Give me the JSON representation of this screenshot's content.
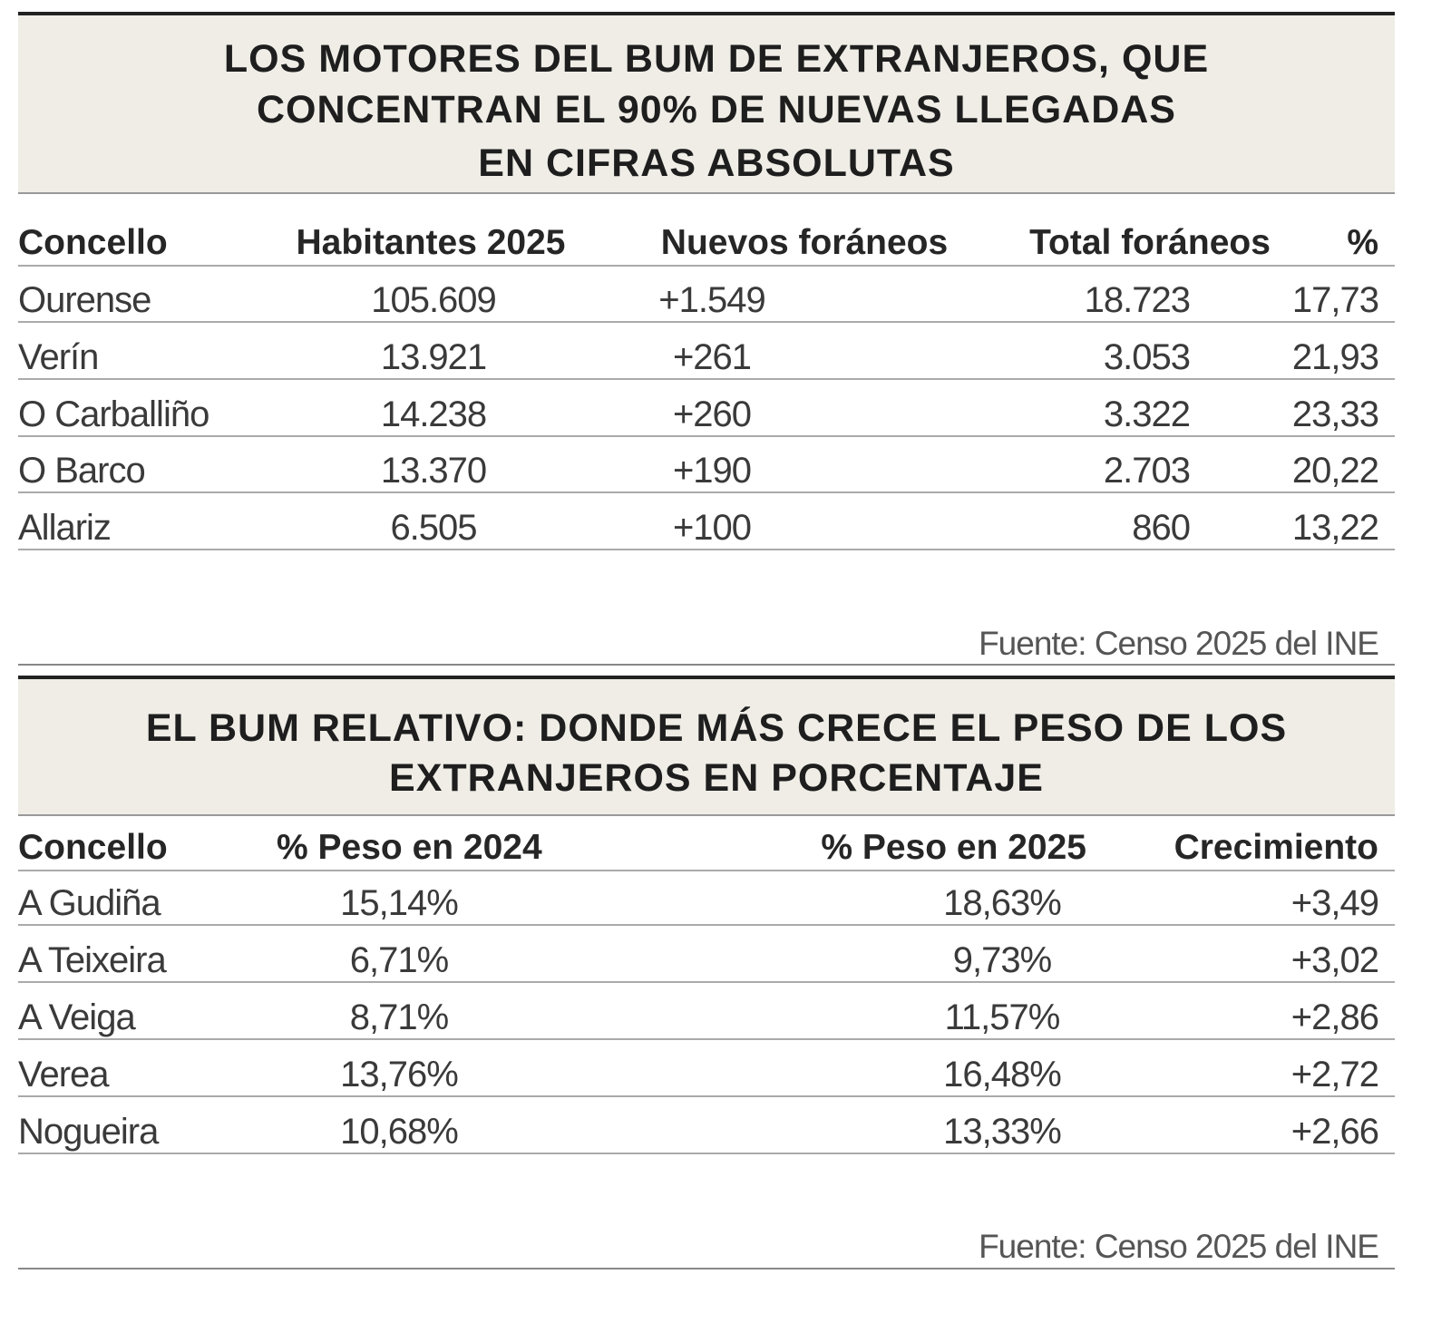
{
  "tables": [
    {
      "title_lines": [
        "LOS MOTORES DEL BUM DE EXTRANJEROS, QUE",
        "CONCENTRAN EL 90% DE NUEVAS LLEGADAS",
        "EN CIFRAS ABSOLUTAS"
      ],
      "columns": [
        "Concello",
        "Habitantes 2025",
        "Nuevos foráneos",
        "Total foráneos",
        "%"
      ],
      "rows": [
        [
          "Ourense",
          "105.609",
          "+1.549",
          "18.723",
          "17,73"
        ],
        [
          "Verín",
          "13.921",
          "+261",
          "3.053",
          "21,93"
        ],
        [
          "O Carballiño",
          "14.238",
          "+260",
          "3.322",
          "23,33"
        ],
        [
          "O Barco",
          "13.370",
          "+190",
          "2.703",
          "20,22"
        ],
        [
          "Allariz",
          "6.505",
          "+100",
          "860",
          "13,22"
        ]
      ],
      "source": "Fuente: Censo 2025 del INE"
    },
    {
      "title_lines": [
        "EL BUM RELATIVO: DONDE MÁS CRECE EL PESO DE LOS",
        "EXTRANJEROS EN PORCENTAJE"
      ],
      "columns": [
        "Concello",
        "% Peso en 2024",
        "% Peso en 2025",
        "Crecimiento"
      ],
      "rows": [
        [
          "A Gudiña",
          "15,14%",
          "18,63%",
          "+3,49"
        ],
        [
          "A Teixeira",
          "6,71%",
          "9,73%",
          "+3,02"
        ],
        [
          "A Veiga",
          "8,71%",
          "11,57%",
          "+2,86"
        ],
        [
          "Verea",
          "13,76%",
          "16,48%",
          "+2,72"
        ],
        [
          "Nogueira",
          "10,68%",
          "13,33%",
          "+2,66"
        ]
      ],
      "source": "Fuente: Censo 2025 del INE"
    }
  ]
}
